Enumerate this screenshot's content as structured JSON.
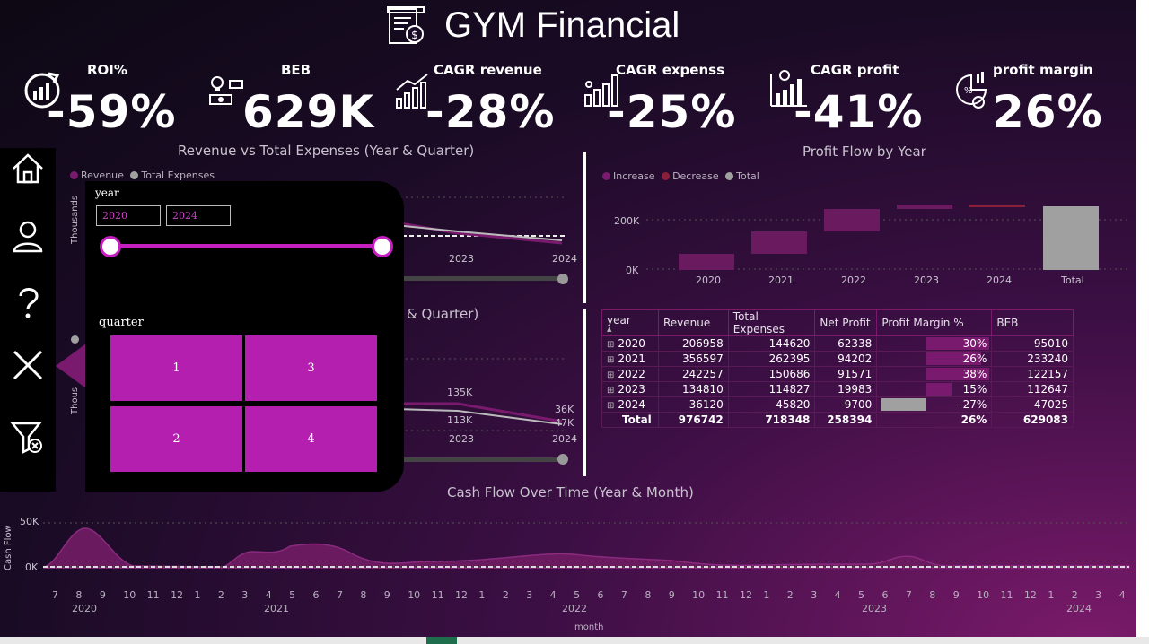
{
  "title": "GYM Financial",
  "kpis": [
    {
      "label": "ROI%",
      "value": "-59%",
      "icon": "roi-icon"
    },
    {
      "label": "BEB",
      "value": "629K",
      "icon": "lightbulb-money-icon"
    },
    {
      "label": "CAGR revenue",
      "value": "-28%",
      "icon": "growth-chart-icon"
    },
    {
      "label": "CAGR expenss",
      "value": "-25%",
      "icon": "bar-chart-icon"
    },
    {
      "label": "CAGR profit",
      "value": "-41%",
      "icon": "profit-chart-icon"
    },
    {
      "label": "profit margin",
      "value": "26%",
      "icon": "pie-money-icon"
    }
  ],
  "rev_chart": {
    "title": "Revenue vs Total Expenses (Year & Quarter)",
    "legend": [
      "Revenue",
      "Total Expenses"
    ],
    "ylabel": "Thousands",
    "x_labels": [
      "2023",
      "2024"
    ]
  },
  "second_chart": {
    "title_fragment": "& Quarter)",
    "ylabel": "Thous",
    "labels": {
      "a": "135K",
      "b": "113K",
      "c": "36K",
      "d": "47K"
    },
    "x_labels": [
      "2023",
      "2024"
    ]
  },
  "profit_flow": {
    "title": "Profit Flow by Year",
    "legend": [
      "Increase",
      "Decrease",
      "Total"
    ],
    "y_ticks": [
      "200K",
      "0K"
    ],
    "categories": [
      "2020",
      "2021",
      "2022",
      "2023",
      "2024",
      "Total"
    ]
  },
  "table": {
    "headers": [
      "year",
      "Revenue",
      "Total Expenses",
      "Net Profit",
      "Profit Margin %",
      "BEB"
    ],
    "rows": [
      {
        "year": "2020",
        "revenue": "206958",
        "expenses": "144620",
        "profit": "62338",
        "margin": "30%",
        "beb": "95010",
        "margin_value": 0.3
      },
      {
        "year": "2021",
        "revenue": "356597",
        "expenses": "262395",
        "profit": "94202",
        "margin": "26%",
        "beb": "233240",
        "margin_value": 0.26
      },
      {
        "year": "2022",
        "revenue": "242257",
        "expenses": "150686",
        "profit": "91571",
        "margin": "38%",
        "beb": "122157",
        "margin_value": 0.38
      },
      {
        "year": "2023",
        "revenue": "134810",
        "expenses": "114827",
        "profit": "19983",
        "margin": "15%",
        "beb": "112647",
        "margin_value": 0.15
      },
      {
        "year": "2024",
        "revenue": "36120",
        "expenses": "45820",
        "profit": "-9700",
        "margin": "-27%",
        "beb": "47025",
        "margin_value": -0.27
      }
    ],
    "total": {
      "label": "Total",
      "revenue": "976742",
      "expenses": "718348",
      "profit": "258394",
      "margin": "26%",
      "beb": "629083"
    }
  },
  "cash_flow": {
    "title": "Cash Flow Over Time (Year & Month)",
    "ylabel": "Cash Flow",
    "y_ticks": [
      "50K",
      "0K"
    ],
    "months": [
      "7",
      "8",
      "9",
      "10",
      "11",
      "12",
      "1",
      "2",
      "3",
      "4",
      "5",
      "6",
      "7",
      "8",
      "9",
      "10",
      "11",
      "12",
      "1",
      "2",
      "3",
      "4",
      "5",
      "6",
      "7",
      "8",
      "9",
      "10",
      "11",
      "12",
      "1",
      "2",
      "3",
      "4",
      "5",
      "6",
      "7",
      "8",
      "9",
      "10",
      "11",
      "12",
      "1",
      "2",
      "3",
      "4"
    ],
    "years": [
      "2020",
      "2021",
      "2022",
      "2023",
      "2024"
    ],
    "xlabel": "month"
  },
  "filter_panel": {
    "year_label": "year",
    "year_from": "2020",
    "year_to": "2024",
    "quarter_label": "quarter",
    "quarters": [
      "1",
      "3",
      "2",
      "4"
    ]
  },
  "sidebar": [
    "home-icon",
    "user-icon",
    "help-icon",
    "close-icon",
    "clear-filter-icon"
  ],
  "colors": {
    "accent": "#b41fb0",
    "revenue": "#7a1a6e",
    "expenses": "#a0a0a0",
    "decrease": "#8a1f3a"
  }
}
